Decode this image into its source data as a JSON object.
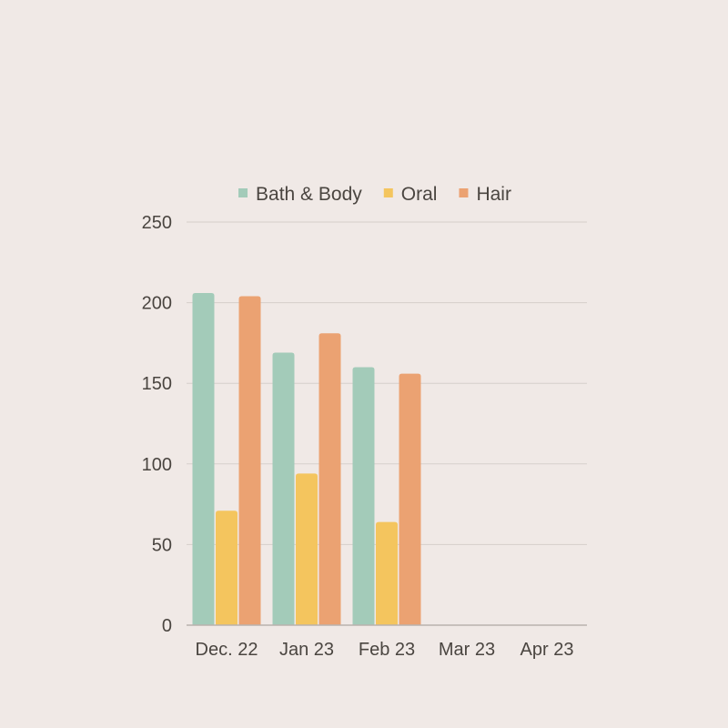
{
  "chart_data": {
    "type": "bar",
    "title": "",
    "xlabel": "",
    "ylabel": "",
    "categories": [
      "Dec. 22",
      "Jan 23",
      "Feb 23",
      "Mar 23",
      "Apr 23"
    ],
    "series": [
      {
        "name": "Bath & Body",
        "color": "#a3cbb9",
        "values": [
          206,
          169,
          160,
          null,
          null
        ]
      },
      {
        "name": "Oral",
        "color": "#f4c55e",
        "values": [
          71,
          94,
          64,
          null,
          null
        ]
      },
      {
        "name": "Hair",
        "color": "#eba272",
        "values": [
          204,
          181,
          156,
          null,
          null
        ]
      }
    ],
    "ylim": [
      0,
      250
    ],
    "yticks": [
      0,
      50,
      100,
      150,
      200,
      250
    ],
    "grid": true,
    "legend_position": "top"
  }
}
